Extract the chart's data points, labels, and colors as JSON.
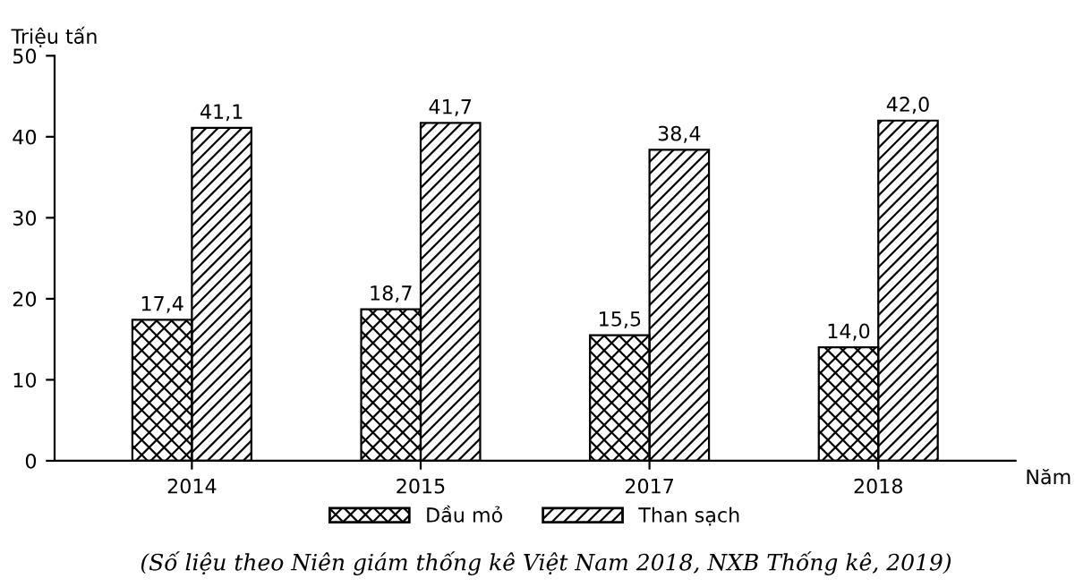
{
  "chart_data": {
    "type": "bar",
    "ylabel": "Triệu tấn",
    "xlabel": "Năm",
    "categories": [
      "2014",
      "2015",
      "2017",
      "2018"
    ],
    "series": [
      {
        "name": "Dầu mỏ",
        "color": "#000000",
        "values": [
          17.4,
          18.7,
          15.5,
          14.0
        ],
        "value_labels": [
          "17,4",
          "18,7",
          "15,5",
          "14,0"
        ]
      },
      {
        "name": "Than sạch",
        "color": "#000000",
        "values": [
          41.1,
          41.7,
          38.4,
          42.0
        ],
        "value_labels": [
          "41,1",
          "41,7",
          "38,4",
          "42,0"
        ]
      }
    ],
    "ylim": [
      0,
      50
    ],
    "yticks": [
      0,
      10,
      20,
      30,
      40,
      50
    ],
    "grid": false,
    "legend": "bottom",
    "annotations": [
      "(Số liệu theo Niên giám thống kê Việt Nam 2018, NXB Thống kê, 2019)"
    ]
  }
}
